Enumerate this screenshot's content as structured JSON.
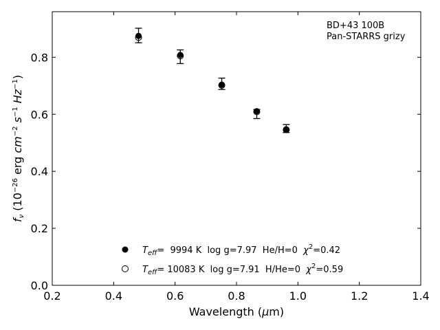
{
  "chart_data": {
    "type": "scatter",
    "xlabel_prefix": "Wavelength (",
    "xlabel_mu": "μ",
    "xlabel_suffix": "m)",
    "ylabel": {
      "f": "f",
      "nu": "ν",
      "paren_open": " (10",
      "exp1": "−26",
      "erg": " erg ",
      "cm": "cm",
      "exp2": "−2",
      "s": "s",
      "exp3": "−1",
      "hz": "Hz",
      "exp4": "−1",
      "paren_close": ")"
    },
    "xlim": [
      0.2,
      1.4
    ],
    "ylim": [
      0.0,
      0.96
    ],
    "xticks": [
      "0.2",
      "0.4",
      "0.6",
      "0.8",
      "1.0",
      "1.2",
      "1.4"
    ],
    "yticks": [
      "0.0",
      "0.2",
      "0.4",
      "0.6",
      "0.8"
    ],
    "annotation": [
      "BD+43 100B",
      "Pan-STARRS grizy"
    ],
    "series": [
      {
        "marker": "filled",
        "x": [
          0.481,
          0.617,
          0.752,
          0.866,
          0.962
        ],
        "y": [
          0.875,
          0.808,
          0.704,
          0.611,
          0.547
        ],
        "err_up": [
          0.027,
          0.018,
          0.023,
          0.006,
          0.017
        ],
        "err_down": [
          0.024,
          0.03,
          0.017,
          0.026,
          0.011
        ]
      },
      {
        "marker": "open",
        "x": [
          0.481,
          0.617,
          0.752,
          0.866,
          0.962
        ],
        "y": [
          0.87,
          0.805,
          0.702,
          0.609,
          0.546
        ]
      }
    ],
    "legend": [
      {
        "marker": "filled",
        "teff_t": "T",
        "teff_sub": "eff",
        "text": "=  9994 K  log g=7.97  He/H=0  ",
        "chi": "χ",
        "chi_sup": "2",
        "chi_val": "=0.42"
      },
      {
        "marker": "open",
        "teff_t": "T",
        "teff_sub": "eff",
        "text": "= 10083 K  log g=7.91  H/He=0  ",
        "chi": "χ",
        "chi_sup": "2",
        "chi_val": "=0.59"
      }
    ]
  }
}
